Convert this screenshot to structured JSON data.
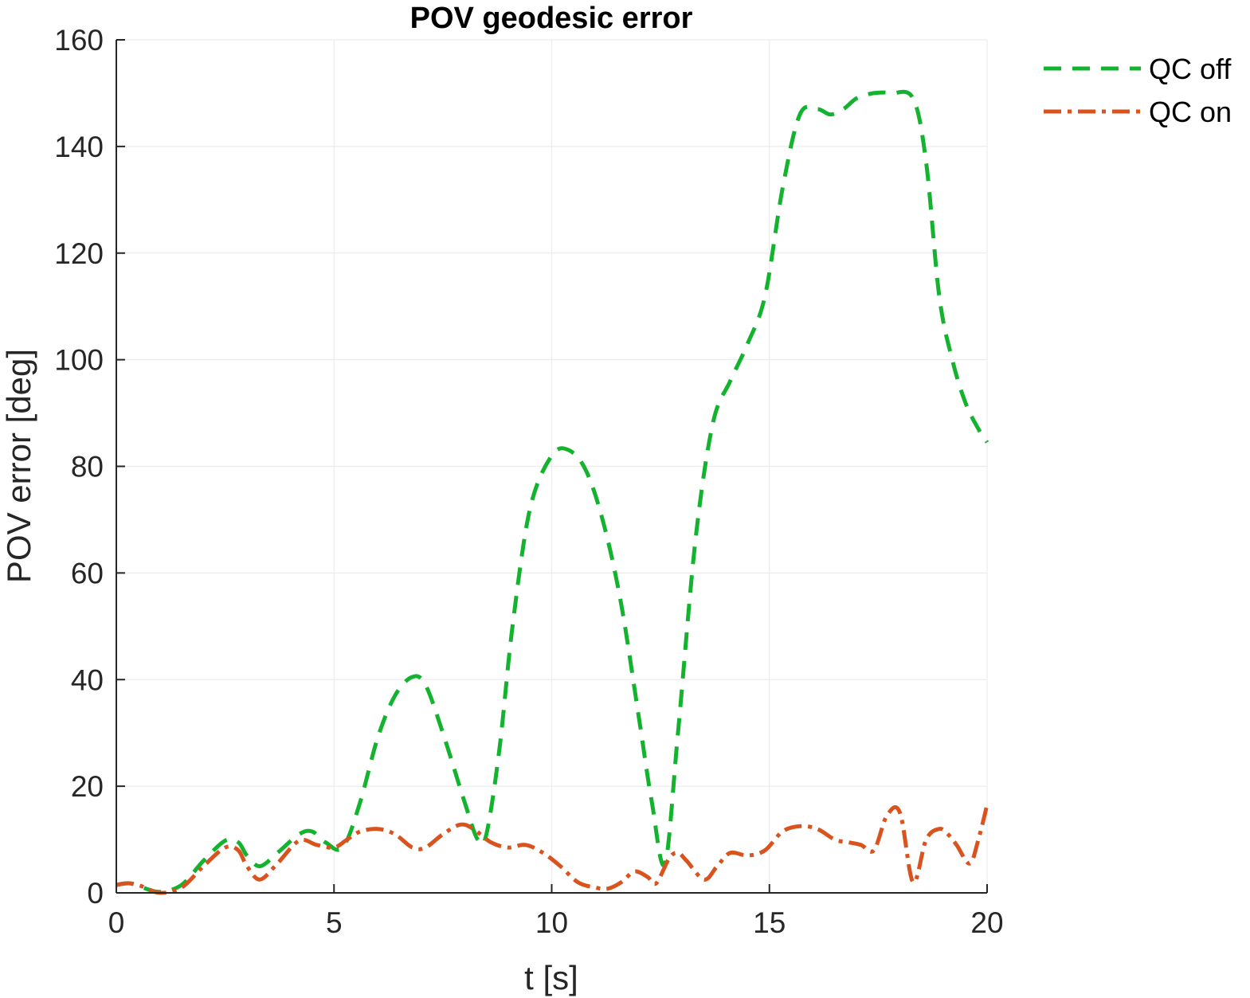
{
  "colors": {
    "qc_off": "#14b32f",
    "qc_on": "#d9531e",
    "axis": "#262626",
    "grid": "#ececec"
  },
  "chart_data": {
    "type": "line",
    "title": "POV geodesic error",
    "xlabel": "t [s]",
    "ylabel": "POV error [deg]",
    "xlim": [
      0,
      20
    ],
    "ylim": [
      0,
      160
    ],
    "xticks": [
      0,
      5,
      10,
      15,
      20
    ],
    "yticks": [
      0,
      20,
      40,
      60,
      80,
      100,
      120,
      140,
      160
    ],
    "grid": true,
    "legend_position": "top-right outside",
    "series": [
      {
        "name": "QC off",
        "style": "dashed",
        "color": "#14b32f",
        "x": [
          0,
          0.3,
          0.6,
          1.0,
          1.5,
          2.0,
          2.5,
          2.8,
          3.0,
          3.3,
          3.7,
          4.2,
          4.5,
          4.8,
          5.2,
          5.6,
          6.0,
          6.4,
          6.8,
          7.1,
          7.5,
          8.0,
          8.3,
          8.5,
          8.8,
          9.1,
          9.5,
          10.0,
          10.4,
          10.8,
          11.2,
          11.6,
          12.0,
          12.3,
          12.6,
          12.9,
          13.3,
          13.7,
          14.1,
          14.5,
          14.9,
          15.3,
          15.7,
          16.1,
          16.4,
          16.7,
          17.0,
          17.4,
          17.8,
          18.3,
          18.6,
          18.9,
          19.2,
          19.5,
          19.8,
          20.0
        ],
        "y": [
          1.5,
          1.8,
          1.0,
          0.2,
          1.5,
          6.0,
          9.8,
          9.5,
          7.0,
          5.0,
          7.5,
          11.0,
          11.5,
          9.5,
          8.5,
          17.0,
          29.0,
          37.0,
          40.5,
          39.0,
          30.0,
          17.0,
          10.0,
          11.0,
          27.0,
          50.0,
          72.0,
          82.0,
          83.0,
          79.0,
          69.0,
          54.0,
          33.0,
          17.0,
          5.5,
          30.0,
          66.0,
          88.0,
          96.0,
          103.0,
          112.0,
          132.0,
          146.0,
          147.0,
          146.0,
          147.0,
          149.0,
          150.0,
          150.0,
          149.0,
          137.0,
          112.0,
          100.0,
          92.0,
          87.0,
          84.5
        ]
      },
      {
        "name": "QC on",
        "style": "dash-dot",
        "color": "#d9531e",
        "x": [
          0,
          0.3,
          0.6,
          1.0,
          1.5,
          2.0,
          2.5,
          2.8,
          3.0,
          3.3,
          3.7,
          4.2,
          4.6,
          5.0,
          5.3,
          5.6,
          6.0,
          6.4,
          6.8,
          7.1,
          7.5,
          7.9,
          8.2,
          8.6,
          9.0,
          9.4,
          9.8,
          10.2,
          10.6,
          11.0,
          11.3,
          11.6,
          11.9,
          12.2,
          12.4,
          12.7,
          12.9,
          13.1,
          13.5,
          13.8,
          14.1,
          14.5,
          14.9,
          15.3,
          15.7,
          16.1,
          16.5,
          16.8,
          17.1,
          17.4,
          17.7,
          18.0,
          18.3,
          18.6,
          18.9,
          19.1,
          19.3,
          19.6,
          19.8,
          20.0
        ],
        "y": [
          1.5,
          1.8,
          1.2,
          0.0,
          1.0,
          5.0,
          8.5,
          8.0,
          5.0,
          2.5,
          5.5,
          9.8,
          9.0,
          8.5,
          10.0,
          11.5,
          12.0,
          11.0,
          8.5,
          8.5,
          11.0,
          12.8,
          12.0,
          9.5,
          8.5,
          9.0,
          7.5,
          5.0,
          2.0,
          1.0,
          0.8,
          2.0,
          4.0,
          3.0,
          1.8,
          6.5,
          7.5,
          6.0,
          2.5,
          5.0,
          7.5,
          7.0,
          8.0,
          11.5,
          12.5,
          12.0,
          10.0,
          9.5,
          9.0,
          8.0,
          14.5,
          15.0,
          2.0,
          10.0,
          12.0,
          11.0,
          9.0,
          5.5,
          10.0,
          16.5
        ]
      }
    ]
  }
}
